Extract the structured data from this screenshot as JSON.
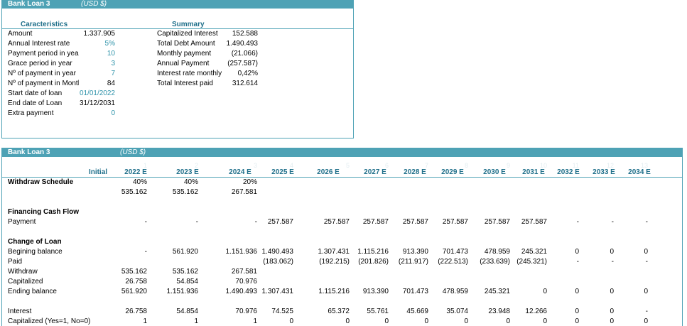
{
  "top": {
    "title": "Bank Loan 3",
    "currency": "(USD $)",
    "characteristics_header": "Caracteristics",
    "summary_header": "Summary",
    "characteristics": [
      {
        "label": "Amount",
        "value": "1.337.905",
        "blue": false
      },
      {
        "label": "Annual Interest rate",
        "value": "5%",
        "blue": true
      },
      {
        "label": "Payment period in years",
        "value": "10",
        "blue": true
      },
      {
        "label": "Grace period in year",
        "value": "3",
        "blue": true
      },
      {
        "label": "Nº of payment in year",
        "value": "7",
        "blue": true
      },
      {
        "label": "Nº of payment in Month",
        "value": "84",
        "blue": false
      },
      {
        "label": "Start date of loan",
        "value": "01/01/2022",
        "blue": true
      },
      {
        "label": "End date of Loan",
        "value": "31/12/2031",
        "blue": false
      },
      {
        "label": "Extra payment",
        "value": "0",
        "blue": true
      }
    ],
    "summary": [
      {
        "label": "Capitalized Interest",
        "value": "152.588"
      },
      {
        "label": "Total Debt Amount",
        "value": "1.490.493"
      },
      {
        "label": "Monthly payment",
        "value": "(21.066)"
      },
      {
        "label": "Annual Payment",
        "value": "(257.587)"
      },
      {
        "label": "Interest rate monthly",
        "value": "0,42%"
      },
      {
        "label": "Total Interest paid",
        "value": "312.614"
      }
    ]
  },
  "bottom": {
    "title": "Bank Loan 3",
    "currency": "(USD $)",
    "period_numbers": [
      "1",
      "2",
      "3",
      "4",
      "5",
      "6",
      "7",
      "8",
      "9",
      "10",
      "11",
      "12",
      "13"
    ],
    "columns": [
      "Initial",
      "2022 E",
      "2023 E",
      "2024 E",
      "2025 E",
      "2026 E",
      "2027 E",
      "2028 E",
      "2029 E",
      "2030 E",
      "2031 E",
      "2032 E",
      "2033 E",
      "2034 E"
    ],
    "rows": [
      {
        "label": "Withdraw Schedule",
        "bold": true,
        "values": [
          "",
          "40%",
          "40%",
          "20%",
          "",
          "",
          "",
          "",
          "",
          "",
          "",
          "",
          "",
          ""
        ]
      },
      {
        "label": "",
        "values": [
          "",
          "535.162",
          "535.162",
          "267.581",
          "",
          "",
          "",
          "",
          "",
          "",
          "",
          "",
          "",
          ""
        ]
      },
      {
        "label": "",
        "values": []
      },
      {
        "label": "Financing Cash Flow",
        "bold": true,
        "values": []
      },
      {
        "label": "Payment",
        "values": [
          "",
          "-",
          "-",
          "-",
          "257.587",
          "257.587",
          "257.587",
          "257.587",
          "257.587",
          "257.587",
          "257.587",
          "-",
          "-",
          "-"
        ]
      },
      {
        "label": "",
        "values": []
      },
      {
        "label": "Change of Loan",
        "bold": true,
        "values": []
      },
      {
        "label": "Begining balance",
        "values": [
          "",
          "-",
          "561.920",
          "1.151.936",
          "1.490.493",
          "1.307.431",
          "1.115.216",
          "913.390",
          "701.473",
          "478.959",
          "245.321",
          "0",
          "0",
          "0"
        ]
      },
      {
        "label": "Paid",
        "values": [
          "",
          "",
          "",
          "",
          "(183.062)",
          "(192.215)",
          "(201.826)",
          "(211.917)",
          "(222.513)",
          "(233.639)",
          "(245.321)",
          "-",
          "-",
          "-"
        ]
      },
      {
        "label": "Withdraw",
        "values": [
          "",
          "535.162",
          "535.162",
          "267.581",
          "",
          "",
          "",
          "",
          "",
          "",
          "",
          "",
          "",
          ""
        ]
      },
      {
        "label": "Capitalized",
        "values": [
          "",
          "26.758",
          "54.854",
          "70.976",
          "",
          "",
          "",
          "",
          "",
          "",
          "",
          "",
          "",
          ""
        ]
      },
      {
        "label": "Ending balance",
        "values": [
          "",
          "561.920",
          "1.151.936",
          "1.490.493",
          "1.307.431",
          "1.115.216",
          "913.390",
          "701.473",
          "478.959",
          "245.321",
          "0",
          "0",
          "0",
          "0"
        ]
      },
      {
        "label": "",
        "values": []
      },
      {
        "label": "Interest",
        "values": [
          "",
          "26.758",
          "54.854",
          "70.976",
          "74.525",
          "65.372",
          "55.761",
          "45.669",
          "35.074",
          "23.948",
          "12.266",
          "0",
          "0",
          "-"
        ]
      },
      {
        "label": "Capitalized (Yes=1, No=0)",
        "values": [
          "",
          "1",
          "1",
          "1",
          "0",
          "0",
          "0",
          "0",
          "0",
          "0",
          "0",
          "0",
          "0",
          "0"
        ]
      }
    ]
  }
}
